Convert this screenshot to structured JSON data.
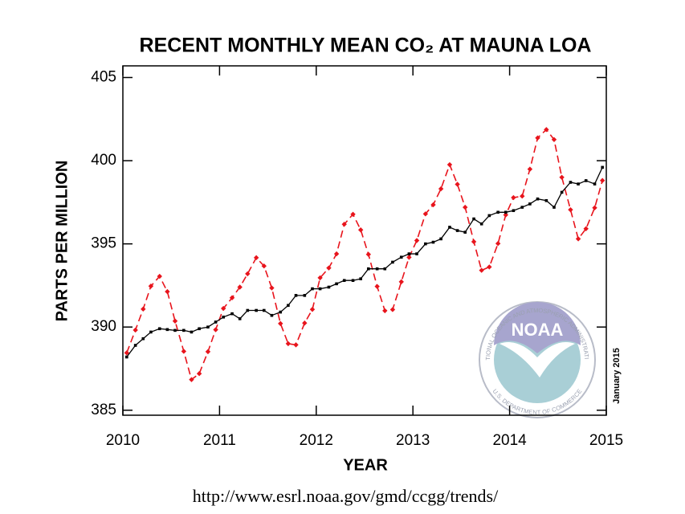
{
  "chart_data": {
    "type": "line",
    "title": "RECENT MONTHLY MEAN CO₂ AT MAUNA LOA",
    "x_label": "YEAR",
    "y_label": "PARTS PER MILLION",
    "annotation": "January 2015",
    "source": "http://www.esrl.noaa.gov/gmd/ccgg/trends/",
    "logo": {
      "name": "NOAA",
      "ring_top": "NATIONAL OCEANIC AND ATMOSPHERIC ADMINISTRATION",
      "ring_bottom": "U.S. DEPARTMENT OF COMMERCE"
    },
    "x": [
      2010.04,
      2010.13,
      2010.21,
      2010.29,
      2010.38,
      2010.46,
      2010.54,
      2010.63,
      2010.71,
      2010.79,
      2010.88,
      2010.96,
      2011.04,
      2011.13,
      2011.21,
      2011.29,
      2011.38,
      2011.46,
      2011.54,
      2011.63,
      2011.71,
      2011.79,
      2011.88,
      2011.96,
      2012.04,
      2012.13,
      2012.21,
      2012.29,
      2012.38,
      2012.46,
      2012.54,
      2012.63,
      2012.71,
      2012.79,
      2012.88,
      2012.96,
      2013.04,
      2013.13,
      2013.21,
      2013.29,
      2013.38,
      2013.46,
      2013.54,
      2013.63,
      2013.71,
      2013.79,
      2013.88,
      2013.96,
      2014.04,
      2014.13,
      2014.21,
      2014.29,
      2014.38,
      2014.46,
      2014.54,
      2014.63,
      2014.71,
      2014.79,
      2014.88,
      2014.96
    ],
    "series": [
      {
        "color": "#e8141c",
        "dashed": true,
        "marker": "diamond",
        "values": [
          388.45,
          389.82,
          391.08,
          392.46,
          393.05,
          392.13,
          390.36,
          388.54,
          386.84,
          387.2,
          388.52,
          389.84,
          391.12,
          391.76,
          392.4,
          393.2,
          394.17,
          393.67,
          392.35,
          390.21,
          389.0,
          388.93,
          390.24,
          391.06,
          392.96,
          393.55,
          394.4,
          396.18,
          396.78,
          395.84,
          394.37,
          392.44,
          390.98,
          391.05,
          392.72,
          394.19,
          395.2,
          396.8,
          397.35,
          398.31,
          399.76,
          398.58,
          397.2,
          395.13,
          393.41,
          393.61,
          395.02,
          396.74,
          397.78,
          397.87,
          399.49,
          401.37,
          401.87,
          401.27,
          399.0,
          397.05,
          395.3,
          395.91,
          397.17,
          398.81
        ]
      },
      {
        "color": "#000000",
        "dashed": false,
        "marker": "square",
        "values": [
          388.2,
          388.9,
          389.3,
          389.7,
          389.9,
          389.85,
          389.8,
          389.8,
          389.7,
          389.9,
          390.0,
          390.3,
          390.6,
          390.8,
          390.5,
          391.0,
          391.0,
          391.0,
          390.7,
          390.9,
          391.3,
          391.9,
          391.9,
          392.3,
          392.3,
          392.4,
          392.6,
          392.8,
          392.8,
          392.9,
          393.5,
          393.5,
          393.5,
          393.9,
          394.2,
          394.4,
          394.4,
          395.0,
          395.1,
          395.3,
          396.0,
          395.8,
          395.7,
          396.5,
          396.2,
          396.7,
          396.9,
          396.9,
          397.0,
          397.2,
          397.4,
          397.7,
          397.6,
          397.2,
          398.1,
          398.7,
          398.6,
          398.8,
          398.6,
          399.6
        ]
      }
    ],
    "xlim": [
      2010,
      2015
    ],
    "xticks": [
      2010,
      2011,
      2012,
      2013,
      2014,
      2015
    ],
    "ylim": [
      384.7,
      405.7
    ],
    "yticks": [
      385,
      390,
      395,
      400,
      405
    ]
  }
}
